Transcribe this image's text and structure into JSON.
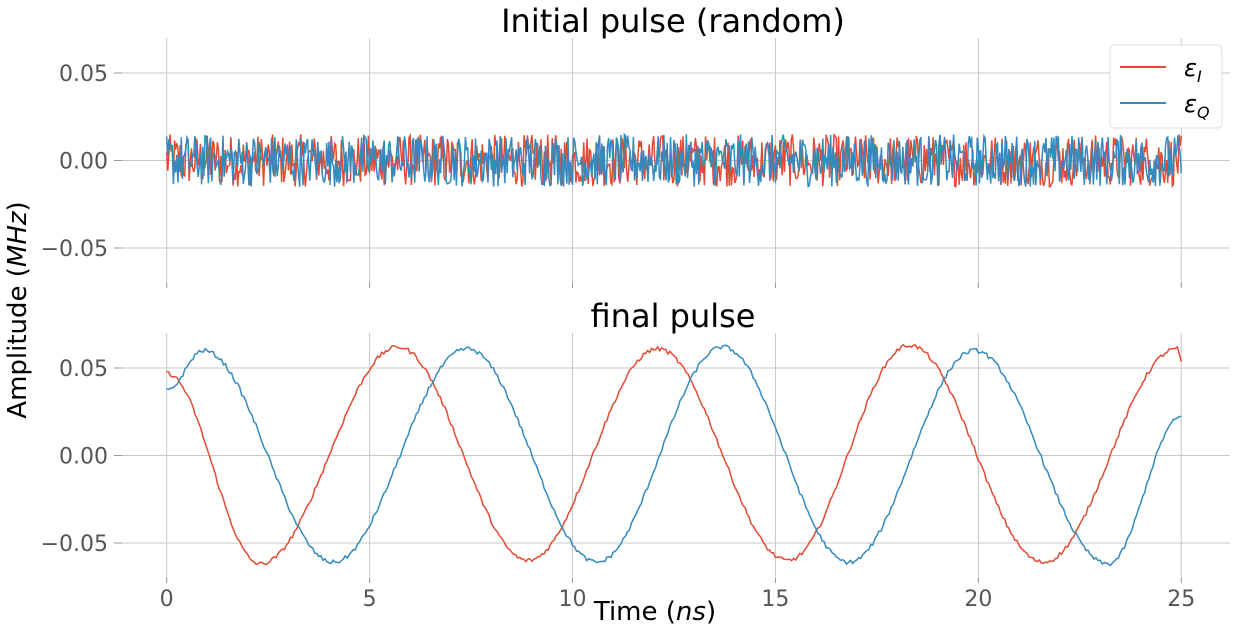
{
  "chart_data": [
    {
      "type": "line",
      "title": "Initial pulse (random)",
      "ylim": [
        -0.07,
        0.07
      ],
      "yticks": [
        -0.05,
        0.0,
        0.05
      ],
      "ytick_labels": [
        "−0.05",
        "0.00",
        "0.05"
      ],
      "xlim": [
        -1.1,
        26.2
      ],
      "grid": true,
      "legend": "top-right",
      "series": [
        {
          "name": "ε_I",
          "color": "#e24a33",
          "pattern": "random noise within ±0.015"
        },
        {
          "name": "ε_Q",
          "color": "#348abd",
          "pattern": "random noise within ±0.015"
        }
      ],
      "legend_labels": {
        "i_main": "ε",
        "i_sub": "I",
        "q_main": "ε",
        "q_sub": "Q"
      }
    },
    {
      "type": "line",
      "title": "final pulse",
      "ylim": [
        -0.07,
        0.07
      ],
      "yticks": [
        -0.05,
        0.0,
        0.05
      ],
      "ytick_labels": [
        "−0.05",
        "0.00",
        "0.05"
      ],
      "xlim": [
        -1.1,
        26.2
      ],
      "xticks": [
        0,
        5,
        10,
        15,
        20,
        25
      ],
      "xtick_labels": [
        "0",
        "5",
        "10",
        "15",
        "20",
        "25"
      ],
      "grid": true,
      "series": [
        {
          "name": "ε_I",
          "color": "#e24a33",
          "amplitude": 0.06,
          "period_ns": 6.3,
          "x": [
            0,
            2.3,
            5.7,
            8.9,
            12.1,
            15.3,
            18.3,
            21.6,
            24.9,
            25
          ],
          "y": [
            0.047,
            -0.062,
            0.062,
            -0.06,
            0.061,
            -0.06,
            0.063,
            -0.061,
            0.061,
            0.054
          ]
        },
        {
          "name": "ε_Q",
          "color": "#348abd",
          "amplitude": 0.06,
          "period_ns": 6.3,
          "x": [
            0,
            0.9,
            4.1,
            7.4,
            10.6,
            13.7,
            16.8,
            19.9,
            23.2,
            25
          ],
          "y": [
            0.037,
            0.06,
            -0.061,
            0.061,
            -0.061,
            0.062,
            -0.061,
            0.06,
            -0.062,
            0.022
          ]
        }
      ]
    }
  ],
  "xlabel": "Time (ns)",
  "xlabel_parts": {
    "prefix": "Time (",
    "unit": "ns",
    "suffix": ")"
  },
  "ylabel": "Amplitude (MHz)",
  "ylabel_parts": {
    "prefix": "Amplitude (",
    "unit": "MHz",
    "suffix": ")"
  }
}
